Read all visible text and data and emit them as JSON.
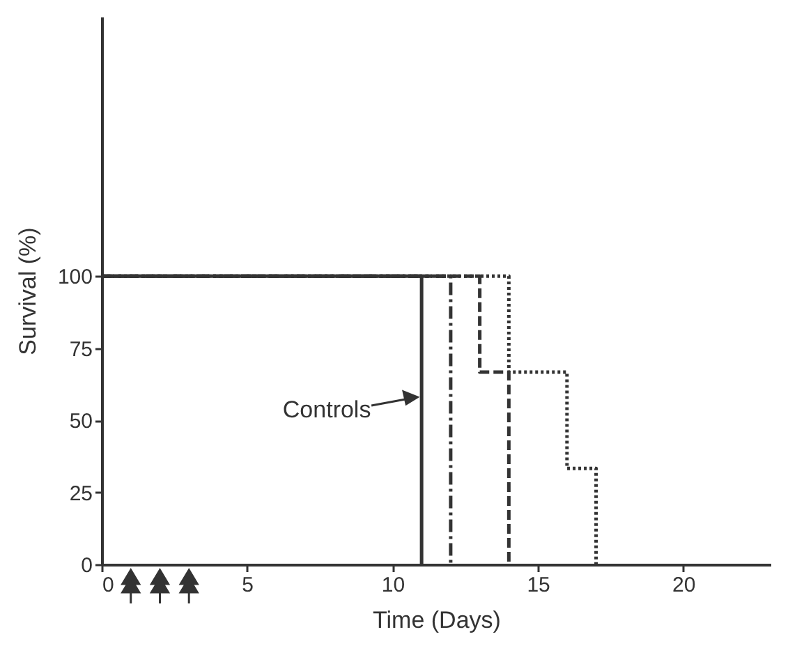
{
  "chart_data": {
    "type": "step",
    "xlabel": "Time (Days)",
    "ylabel": "Survival (%)",
    "xlim": [
      0,
      23
    ],
    "ylim": [
      0,
      190
    ],
    "xticks": [
      0,
      5,
      10,
      15,
      20
    ],
    "yticks": [
      0,
      25,
      50,
      75,
      100
    ],
    "grid": false,
    "series": [
      {
        "name": "Controls",
        "color": "#333333",
        "line_style": "solid",
        "x": [
          0,
          11
        ],
        "values": [
          100,
          0
        ]
      },
      {
        "color": "#333333",
        "line_style": "dashdot",
        "x": [
          0,
          12
        ],
        "values": [
          100,
          0
        ]
      },
      {
        "color": "#333333",
        "line_style": "dashed",
        "x": [
          0,
          13,
          14
        ],
        "values": [
          100,
          66.7,
          0
        ]
      },
      {
        "color": "#333333",
        "line_style": "dotted",
        "x": [
          0,
          14,
          16,
          17
        ],
        "values": [
          100,
          66.7,
          33.3,
          0
        ]
      }
    ]
  }
}
